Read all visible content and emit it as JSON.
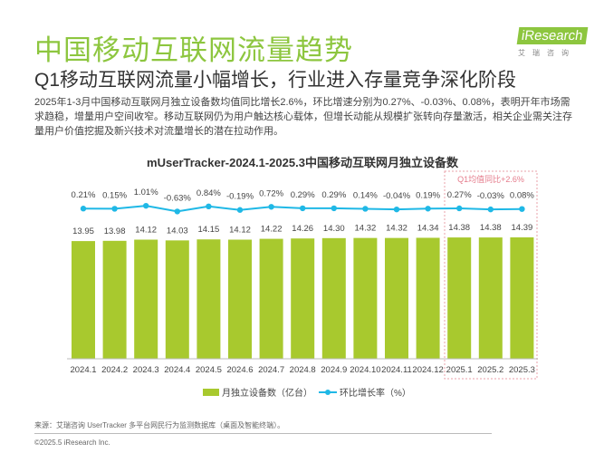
{
  "header": {
    "title": "中国移动互联网流量趋势",
    "subtitle": "Q1移动互联网流量小幅增长，行业进入存量竞争深化阶段",
    "description": "2025年1-3月中国移动互联网月独立设备数均值同比增长2.6%，环比增速分别为0.27%、-0.03%、0.08%，表明开年市场需求趋稳，增量用户空间收窄。移动互联网仍为用户触达核心载体，但增长动能从规模扩张转向存量激活，相关企业需关注存量用户价值挖掘及新兴技术对流量增长的潜在拉动作用。"
  },
  "logo": {
    "brand": "iResearch",
    "cn": "艾瑞咨询"
  },
  "footer": {
    "source": "来源：艾瑞咨询 UserTracker 多平台网民行为监测数据库（桌面及智能终端）。",
    "copyright": "©2025.5 iResearch Inc."
  },
  "colors": {
    "bar": "#a8c92e",
    "line": "#1fb8e6",
    "highlight_border": "#e8a0a8",
    "highlight_text": "#e57c8c",
    "title": "#8dc63f"
  },
  "chart_data": {
    "type": "bar",
    "title": "mUserTracker-2024.1-2025.3中国移动互联网月独立设备数",
    "categories": [
      "2024.1",
      "2024.2",
      "2024.3",
      "2024.4",
      "2024.5",
      "2024.6",
      "2024.7",
      "2024.8",
      "2024.9",
      "2024.10",
      "2024.11",
      "2024.12",
      "2025.1",
      "2025.2",
      "2025.3"
    ],
    "series": [
      {
        "name": "月独立设备数（亿台）",
        "type": "bar",
        "values": [
          13.95,
          13.98,
          14.12,
          14.03,
          14.15,
          14.12,
          14.22,
          14.26,
          14.3,
          14.32,
          14.32,
          14.34,
          14.38,
          14.38,
          14.39
        ],
        "labels": [
          "13.95",
          "13.98",
          "14.12",
          "14.03",
          "14.15",
          "14.12",
          "14.22",
          "14.26",
          "14.30",
          "14.32",
          "14.32",
          "14.34",
          "14.38",
          "14.38",
          "14.39"
        ]
      },
      {
        "name": "环比增长率（%）",
        "type": "line",
        "values": [
          0.21,
          0.15,
          1.01,
          -0.63,
          0.84,
          -0.19,
          0.72,
          0.29,
          0.29,
          0.14,
          -0.04,
          0.19,
          0.27,
          -0.03,
          0.08
        ],
        "labels": [
          "0.21%",
          "0.15%",
          "1.01%",
          "-0.63%",
          "0.84%",
          "-0.19%",
          "0.72%",
          "0.29%",
          "0.29%",
          "0.14%",
          "-0.04%",
          "0.19%",
          "0.27%",
          "-0.03%",
          "0.08%"
        ]
      }
    ],
    "annotation": "Q1均值同比+2.6%",
    "legend_position": "bottom",
    "grid": false
  }
}
